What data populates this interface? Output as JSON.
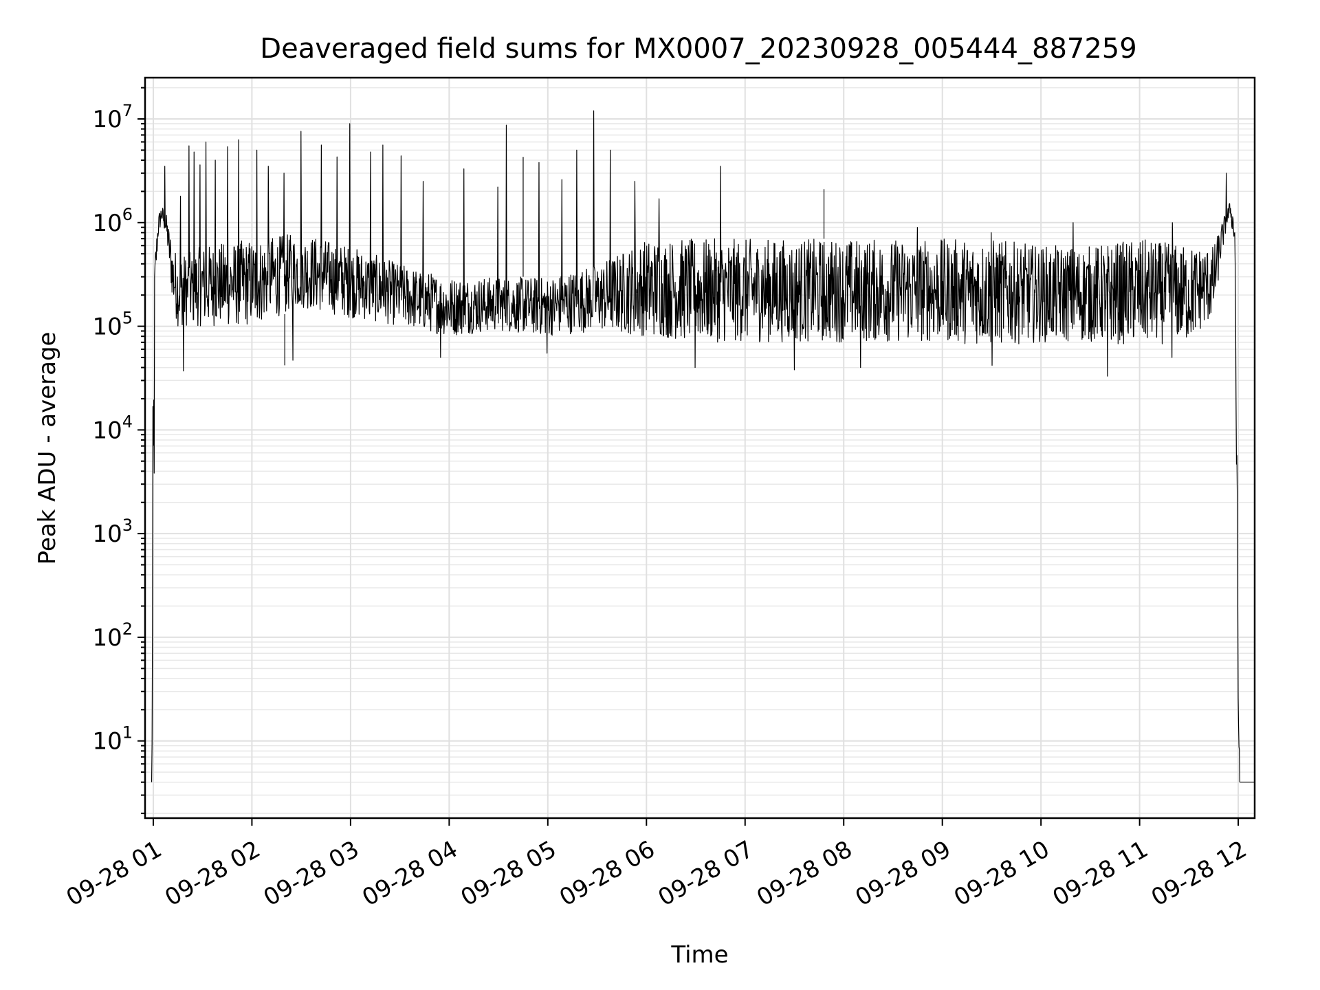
{
  "chart_data": {
    "type": "line",
    "title": "Deaveraged field sums for MX0007_20230928_005444_887259",
    "xlabel": "Time",
    "ylabel": "Peak ADU - average",
    "yscale": "log",
    "ylim": [
      1.8,
      25000000
    ],
    "xlim": [
      "09-28 00:55",
      "09-28 12:10"
    ],
    "grid": "major and minor on both axes",
    "x_ticks": [
      "09-28 01",
      "09-28 02",
      "09-28 03",
      "09-28 04",
      "09-28 05",
      "09-28 06",
      "09-28 07",
      "09-28 08",
      "09-28 09",
      "09-28 10",
      "09-28 11",
      "09-28 12"
    ],
    "y_ticks": [
      {
        "base": "10",
        "exp": "1",
        "value": 10
      },
      {
        "base": "10",
        "exp": "2",
        "value": 100
      },
      {
        "base": "10",
        "exp": "3",
        "value": 1000
      },
      {
        "base": "10",
        "exp": "4",
        "value": 10000
      },
      {
        "base": "10",
        "exp": "5",
        "value": 100000
      },
      {
        "base": "10",
        "exp": "6",
        "value": 1000000
      },
      {
        "base": "10",
        "exp": "7",
        "value": 10000000
      }
    ],
    "series": [
      {
        "color": "#000000",
        "envelope_note": "dense noisy signal; approximate envelope read from the plot",
        "x": [
          "09-28 00:59",
          "09-28 01:00",
          "09-28 01:01",
          "09-28 01:03",
          "09-28 01:05",
          "09-28 01:08",
          "09-28 01:12",
          "09-28 01:15",
          "09-28 01:20",
          "09-28 01:30",
          "09-28 02:00",
          "09-28 02:30",
          "09-28 03:00",
          "09-28 03:30",
          "09-28 04:00",
          "09-28 04:30",
          "09-28 05:00",
          "09-28 05:30",
          "09-28 06:00",
          "09-28 06:30",
          "09-28 07:00",
          "09-28 07:30",
          "09-28 08:00",
          "09-28 08:30",
          "09-28 09:00",
          "09-28 09:30",
          "09-28 10:00",
          "09-28 10:30",
          "09-28 11:00",
          "09-28 11:30",
          "09-28 11:45",
          "09-28 11:50",
          "09-28 11:55",
          "09-28 11:58",
          "09-28 12:00",
          "09-28 12:01",
          "09-28 12:02",
          "09-28 12:10"
        ],
        "low": [
          4,
          4,
          200000,
          700000,
          1000000,
          700000,
          150000,
          100000,
          100000,
          100000,
          100000,
          150000,
          120000,
          100000,
          80000,
          90000,
          80000,
          90000,
          80000,
          70000,
          70000,
          70000,
          70000,
          70000,
          70000,
          65000,
          70000,
          70000,
          65000,
          70000,
          120000,
          500000,
          1200000,
          500000,
          4,
          4,
          4,
          4
        ],
        "high": [
          4,
          200000,
          500000,
          1200000,
          1500000,
          1200000,
          600000,
          500000,
          500000,
          600000,
          700000,
          800000,
          600000,
          400000,
          300000,
          300000,
          300000,
          400000,
          700000,
          700000,
          700000,
          700000,
          700000,
          700000,
          700000,
          700000,
          600000,
          600000,
          700000,
          600000,
          600000,
          1000000,
          1600000,
          1200000,
          200,
          4,
          4,
          4
        ],
        "spikes": [
          [
            "09-28 01:07",
            3500000
          ],
          [
            "09-28 01:17",
            1800000
          ],
          [
            "09-28 01:22",
            5500000
          ],
          [
            "09-28 01:25",
            4800000
          ],
          [
            "09-28 01:28",
            3600000
          ],
          [
            "09-28 01:32",
            6000000
          ],
          [
            "09-28 01:38",
            4000000
          ],
          [
            "09-28 01:45",
            5400000
          ],
          [
            "09-28 01:52",
            6300000
          ],
          [
            "09-28 02:03",
            5000000
          ],
          [
            "09-28 02:10",
            3500000
          ],
          [
            "09-28 02:20",
            3000000
          ],
          [
            "09-28 02:30",
            7600000
          ],
          [
            "09-28 02:42",
            5600000
          ],
          [
            "09-28 02:52",
            4300000
          ],
          [
            "09-28 03:00",
            9000000
          ],
          [
            "09-28 03:12",
            4800000
          ],
          [
            "09-28 03:20",
            5600000
          ],
          [
            "09-28 03:31",
            4400000
          ],
          [
            "09-28 03:44",
            2500000
          ],
          [
            "09-28 04:09",
            3300000
          ],
          [
            "09-28 04:30",
            2200000
          ],
          [
            "09-28 04:35",
            8700000
          ],
          [
            "09-28 04:45",
            4300000
          ],
          [
            "09-28 04:55",
            3800000
          ],
          [
            "09-28 05:09",
            2600000
          ],
          [
            "09-28 05:18",
            5000000
          ],
          [
            "09-28 05:28",
            12000000
          ],
          [
            "09-28 05:38",
            5000000
          ],
          [
            "09-28 05:53",
            2500000
          ],
          [
            "09-28 06:08",
            1700000
          ],
          [
            "09-28 06:45",
            3500000
          ],
          [
            "09-28 07:48",
            2100000
          ],
          [
            "09-28 08:45",
            900000
          ],
          [
            "09-28 09:30",
            800000
          ],
          [
            "09-28 10:20",
            1000000
          ],
          [
            "09-28 11:20",
            1000000
          ],
          [
            "09-28 11:53",
            3000000
          ]
        ],
        "dips": [
          [
            "09-28 01:18",
            37000
          ],
          [
            "09-28 02:20",
            42000
          ],
          [
            "09-28 02:25",
            47000
          ],
          [
            "09-28 03:55",
            50000
          ],
          [
            "09-28 05:00",
            55000
          ],
          [
            "09-28 06:30",
            40000
          ],
          [
            "09-28 07:30",
            38000
          ],
          [
            "09-28 08:10",
            40000
          ],
          [
            "09-28 09:30",
            42000
          ],
          [
            "09-28 10:40",
            33000
          ],
          [
            "09-28 11:20",
            50000
          ]
        ]
      }
    ]
  }
}
